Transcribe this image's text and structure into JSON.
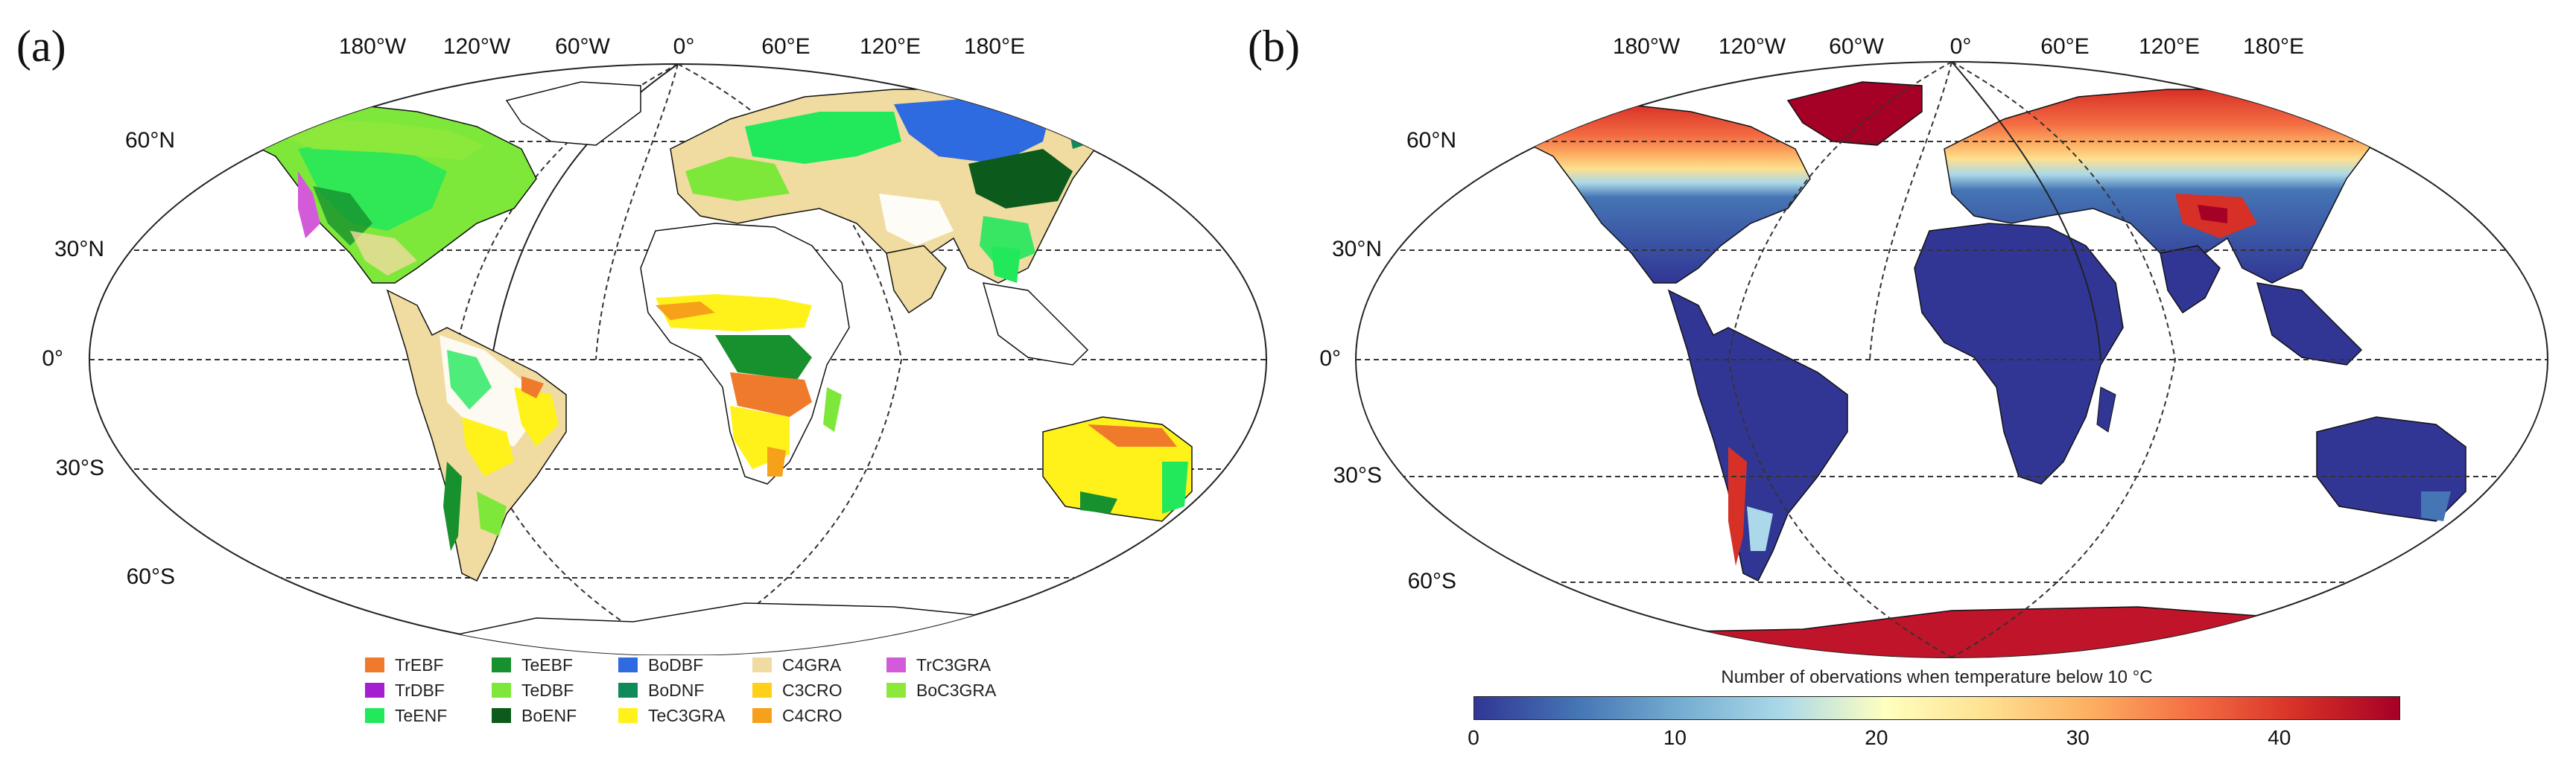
{
  "panel_a": {
    "letter": "(a)",
    "lon_labels": [
      "180°W",
      "120°W",
      "60°W",
      "0°",
      "60°E",
      "120°E",
      "180°E"
    ],
    "lat_labels": [
      "60°N",
      "30°N",
      "0°",
      "30°S",
      "60°S"
    ],
    "legend": [
      {
        "label": "TrEBF",
        "color": "#f07a2b"
      },
      {
        "label": "TrDBF",
        "color": "#a51fd0"
      },
      {
        "label": "TeENF",
        "color": "#22e85c"
      },
      {
        "label": "TeEBF",
        "color": "#17902e"
      },
      {
        "label": "TeDBF",
        "color": "#7ee83a"
      },
      {
        "label": "BoENF",
        "color": "#0c5a1c"
      },
      {
        "label": "BoDBF",
        "color": "#2f6be0"
      },
      {
        "label": "BoDNF",
        "color": "#118a5a"
      },
      {
        "label": "TeC3GRA",
        "color": "#fff21a"
      },
      {
        "label": "C4GRA",
        "color": "#f0dba0"
      },
      {
        "label": "C3CRO",
        "color": "#ffd01a"
      },
      {
        "label": "C4CRO",
        "color": "#f7a01a"
      },
      {
        "label": "TrC3GRA",
        "color": "#d35ad8"
      },
      {
        "label": "BoC3GRA",
        "color": "#8ce83a"
      }
    ]
  },
  "panel_b": {
    "letter": "(b)",
    "lon_labels": [
      "180°W",
      "120°W",
      "60°W",
      "0°",
      "60°E",
      "120°E",
      "180°E"
    ],
    "lat_labels": [
      "60°N",
      "30°N",
      "0°",
      "30°S",
      "60°S"
    ],
    "colorbar": {
      "title": "Number of obervations when temperature below 10 °C",
      "min": 0,
      "max": 46,
      "ticks": [
        0,
        10,
        20,
        30,
        40
      ],
      "colors": [
        "#313695",
        "#4575b4",
        "#74add1",
        "#abd9e9",
        "#ffffbf",
        "#fee090",
        "#fdae61",
        "#f46d43",
        "#d73027",
        "#a50026"
      ]
    }
  }
}
